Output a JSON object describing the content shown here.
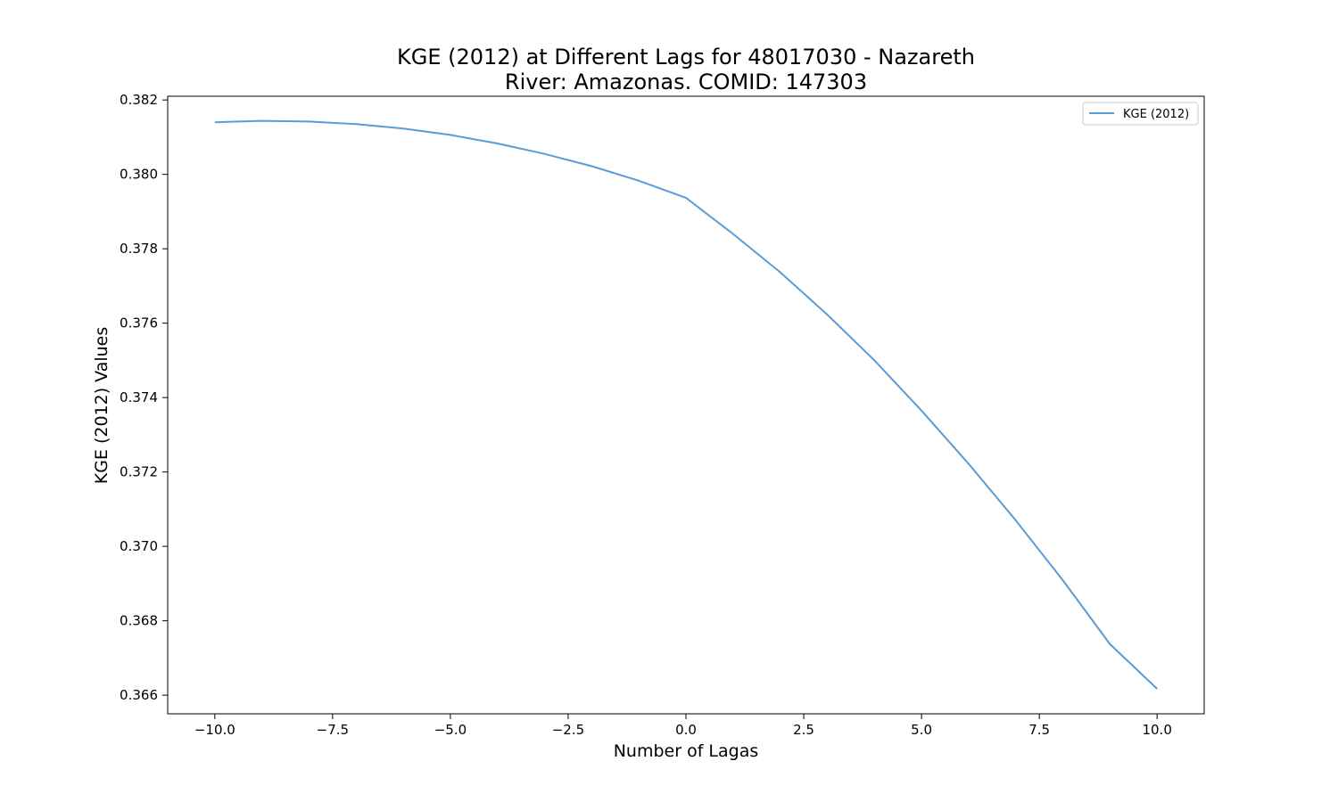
{
  "chart_data": {
    "type": "line",
    "title_line1": "KGE (2012) at Different Lags for 48017030 - Nazareth",
    "title_line2": "River: Amazonas. COMID: 147303",
    "xlabel": "Number of Lagas",
    "ylabel": "KGE (2012) Values",
    "xlim": [
      -11,
      11
    ],
    "ylim": [
      0.3655,
      0.3821
    ],
    "x_ticks": [
      -10.0,
      -7.5,
      -5.0,
      -2.5,
      0.0,
      2.5,
      5.0,
      7.5,
      10.0
    ],
    "x_tick_labels": [
      "−10.0",
      "−7.5",
      "−5.0",
      "−2.5",
      "0.0",
      "2.5",
      "5.0",
      "7.5",
      "10.0"
    ],
    "y_ticks": [
      0.366,
      0.368,
      0.37,
      0.372,
      0.374,
      0.376,
      0.378,
      0.38,
      0.382
    ],
    "y_tick_labels": [
      "0.366",
      "0.368",
      "0.370",
      "0.372",
      "0.374",
      "0.376",
      "0.378",
      "0.380",
      "0.382"
    ],
    "grid": false,
    "legend_position": "top-right",
    "series": [
      {
        "name": "KGE (2012)",
        "color": "#5b9bd5",
        "x": [
          -10,
          -9,
          -8,
          -7,
          -6,
          -5,
          -4,
          -3,
          -2,
          -1,
          0,
          1,
          2,
          3,
          4,
          5,
          6,
          7,
          8,
          9,
          10
        ],
        "values": [
          0.3814,
          0.38144,
          0.38142,
          0.38135,
          0.38123,
          0.38106,
          0.38083,
          0.38055,
          0.38022,
          0.37983,
          0.37937,
          0.3784,
          0.37737,
          0.37623,
          0.375,
          0.37365,
          0.37222,
          0.3707,
          0.36909,
          0.36737,
          0.36617
        ]
      }
    ]
  }
}
